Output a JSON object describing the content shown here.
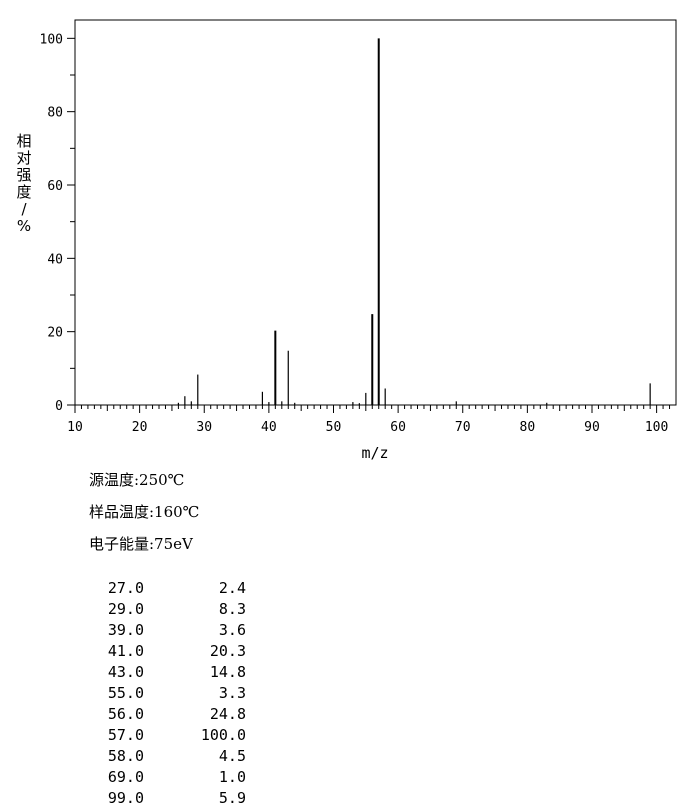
{
  "chart_data": {
    "type": "bar",
    "xlabel": "m/z",
    "ylabel": "相对强度/%",
    "xlim": [
      10,
      103
    ],
    "ylim": [
      0,
      105
    ],
    "x_ticks": [
      10,
      20,
      30,
      40,
      50,
      60,
      70,
      80,
      90,
      100
    ],
    "y_ticks": [
      0,
      20,
      40,
      60,
      80,
      100
    ],
    "grid": false,
    "peaks": [
      {
        "mz": 26,
        "rel": 0.6
      },
      {
        "mz": 27,
        "rel": 2.4
      },
      {
        "mz": 28,
        "rel": 1.0
      },
      {
        "mz": 29,
        "rel": 8.3
      },
      {
        "mz": 39,
        "rel": 3.6
      },
      {
        "mz": 40,
        "rel": 0.8
      },
      {
        "mz": 41,
        "rel": 20.3
      },
      {
        "mz": 42,
        "rel": 1.0
      },
      {
        "mz": 43,
        "rel": 14.8
      },
      {
        "mz": 44,
        "rel": 0.6
      },
      {
        "mz": 53,
        "rel": 0.8
      },
      {
        "mz": 54,
        "rel": 0.5
      },
      {
        "mz": 55,
        "rel": 3.3
      },
      {
        "mz": 56,
        "rel": 24.8
      },
      {
        "mz": 57,
        "rel": 100.0
      },
      {
        "mz": 58,
        "rel": 4.5
      },
      {
        "mz": 69,
        "rel": 1.0
      },
      {
        "mz": 83,
        "rel": 0.6
      },
      {
        "mz": 99,
        "rel": 5.9
      }
    ]
  },
  "conditions": {
    "source_temp": "源温度:250℃",
    "sample_temp": "样品温度:160℃",
    "electron_energy": "电子能量:75eV"
  },
  "peak_table": [
    {
      "mz": "27.0",
      "abundance": "2.4"
    },
    {
      "mz": "29.0",
      "abundance": "8.3"
    },
    {
      "mz": "39.0",
      "abundance": "3.6"
    },
    {
      "mz": "41.0",
      "abundance": "20.3"
    },
    {
      "mz": "43.0",
      "abundance": "14.8"
    },
    {
      "mz": "55.0",
      "abundance": "3.3"
    },
    {
      "mz": "56.0",
      "abundance": "24.8"
    },
    {
      "mz": "57.0",
      "abundance": "100.0"
    },
    {
      "mz": "58.0",
      "abundance": "4.5"
    },
    {
      "mz": "69.0",
      "abundance": "1.0"
    },
    {
      "mz": "99.0",
      "abundance": "5.9"
    }
  ]
}
